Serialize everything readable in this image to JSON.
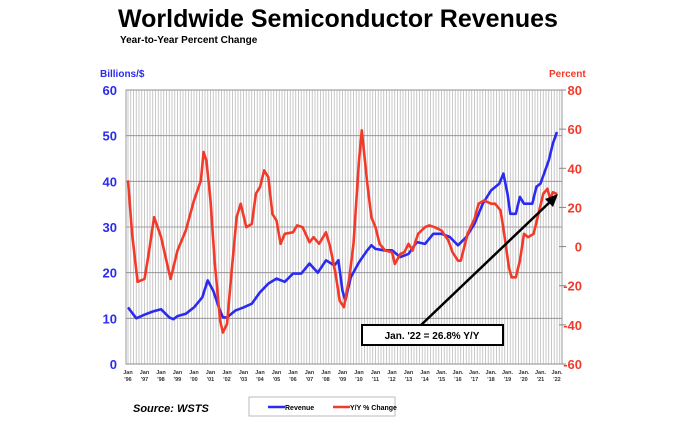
{
  "chart_data": {
    "type": "line",
    "title": "Worldwide Semiconductor Revenues",
    "subtitle": "Year-to-Year Percent Change",
    "ylabel_left": "Billions/$",
    "ylabel_right": "Percent",
    "ylim_left": [
      0,
      60
    ],
    "ylim_right": [
      -60,
      80
    ],
    "yticks_left": [
      "0",
      "10",
      "20",
      "30",
      "40",
      "50",
      "60"
    ],
    "yticks_right": [
      "-60",
      "-40",
      "-20",
      "0",
      "20",
      "40",
      "60",
      "80"
    ],
    "xlim": [
      "1996-01",
      "2022-01"
    ],
    "xticks": [
      [
        "Jan",
        "'96"
      ],
      [
        "Jan",
        "'97"
      ],
      [
        "Jan",
        "'98"
      ],
      [
        "Jan",
        "'99"
      ],
      [
        "Jan",
        "'00"
      ],
      [
        "Jan",
        "'01"
      ],
      [
        "Jan",
        "'02"
      ],
      [
        "Jan",
        "'03"
      ],
      [
        "Jan",
        "'04"
      ],
      [
        "Jan",
        "'05"
      ],
      [
        "Jan",
        "'06"
      ],
      [
        "Jan",
        "'07"
      ],
      [
        "Jan",
        "'08"
      ],
      [
        "Jan",
        "'09"
      ],
      [
        "Jan",
        "'10"
      ],
      [
        "Jan",
        "'11"
      ],
      [
        "Jan",
        "'12"
      ],
      [
        "Jan",
        "'13"
      ],
      [
        "Jan",
        "'14"
      ],
      [
        "Jan.",
        "'15"
      ],
      [
        "Jan.",
        "'16"
      ],
      [
        "Jan.",
        "'17"
      ],
      [
        "Jan.",
        "'18"
      ],
      [
        "Jan.",
        "'19"
      ],
      [
        "Jan.",
        "'20"
      ],
      [
        "Jan.",
        "'21"
      ],
      [
        "Jan.",
        "'22"
      ]
    ],
    "grid": true,
    "legend_position": "bottom",
    "source": "Source: WSTS",
    "annotation": "Jan. '22 = 26.8% Y/Y",
    "series": [
      {
        "name": "Revenue",
        "axis": "left",
        "color": "#2b2bf0",
        "points": [
          [
            "1996-01",
            12.4
          ],
          [
            "1996-07",
            10
          ],
          [
            "1997-01",
            10.8
          ],
          [
            "1997-07",
            11.5
          ],
          [
            "1998-01",
            12
          ],
          [
            "1998-07",
            10.2
          ],
          [
            "1998-10",
            9.8
          ],
          [
            "1999-01",
            10.5
          ],
          [
            "1999-07",
            11
          ],
          [
            "2000-01",
            12.4
          ],
          [
            "2000-07",
            14.6
          ],
          [
            "2000-11",
            18.3
          ],
          [
            "2001-03",
            16
          ],
          [
            "2001-07",
            12.4
          ],
          [
            "2001-10",
            10.2
          ],
          [
            "2002-01",
            10.2
          ],
          [
            "2002-07",
            11.7
          ],
          [
            "2003-01",
            12.4
          ],
          [
            "2003-07",
            13.2
          ],
          [
            "2004-01",
            15.7
          ],
          [
            "2004-07",
            17.6
          ],
          [
            "2005-01",
            18.7
          ],
          [
            "2005-07",
            18
          ],
          [
            "2006-01",
            19.8
          ],
          [
            "2006-07",
            19.8
          ],
          [
            "2007-01",
            22
          ],
          [
            "2007-07",
            20
          ],
          [
            "2008-01",
            22.7
          ],
          [
            "2008-07",
            21.6
          ],
          [
            "2008-10",
            22.7
          ],
          [
            "2009-01",
            16
          ],
          [
            "2009-03",
            13.9
          ],
          [
            "2009-07",
            19
          ],
          [
            "2010-01",
            22.3
          ],
          [
            "2010-07",
            24.9
          ],
          [
            "2010-10",
            26
          ],
          [
            "2011-01",
            25.2
          ],
          [
            "2011-07",
            24.9
          ],
          [
            "2012-01",
            24.9
          ],
          [
            "2012-07",
            23.4
          ],
          [
            "2013-01",
            24.1
          ],
          [
            "2013-07",
            26.7
          ],
          [
            "2014-01",
            26.3
          ],
          [
            "2014-07",
            28.5
          ],
          [
            "2015-01",
            28.5
          ],
          [
            "2015-07",
            27.8
          ],
          [
            "2016-01",
            26
          ],
          [
            "2016-07",
            27.8
          ],
          [
            "2017-01",
            30.7
          ],
          [
            "2017-07",
            35.1
          ],
          [
            "2018-01",
            38
          ],
          [
            "2018-07",
            39.5
          ],
          [
            "2018-10",
            41.7
          ],
          [
            "2019-01",
            37.3
          ],
          [
            "2019-03",
            32.9
          ],
          [
            "2019-07",
            32.9
          ],
          [
            "2019-10",
            36.6
          ],
          [
            "2020-01",
            35.1
          ],
          [
            "2020-07",
            35.1
          ],
          [
            "2020-10",
            38.8
          ],
          [
            "2021-01",
            39.5
          ],
          [
            "2021-07",
            44.6
          ],
          [
            "2021-10",
            48.3
          ],
          [
            "2022-01",
            50.8
          ]
        ]
      },
      {
        "name": "Y/Y % Change",
        "axis": "right",
        "color": "#f23a2a",
        "points": [
          [
            "1996-01",
            33.8
          ],
          [
            "1996-04",
            6.5
          ],
          [
            "1996-08",
            -18
          ],
          [
            "1997-01",
            -16.5
          ],
          [
            "1997-04",
            -4
          ],
          [
            "1997-08",
            15
          ],
          [
            "1998-01",
            5
          ],
          [
            "1998-06",
            -10.6
          ],
          [
            "1998-08",
            -16.5
          ],
          [
            "1999-01",
            -2
          ],
          [
            "1999-07",
            8.2
          ],
          [
            "2000-01",
            23.6
          ],
          [
            "2000-06",
            33.8
          ],
          [
            "2000-08",
            48.3
          ],
          [
            "2000-10",
            44
          ],
          [
            "2001-01",
            23.6
          ],
          [
            "2001-04",
            -7.2
          ],
          [
            "2001-08",
            -37.9
          ],
          [
            "2001-10",
            -43.9
          ],
          [
            "2002-01",
            -39.6
          ],
          [
            "2002-04",
            -15.7
          ],
          [
            "2002-08",
            15
          ],
          [
            "2002-11",
            21.9
          ],
          [
            "2003-03",
            9.9
          ],
          [
            "2003-07",
            11.6
          ],
          [
            "2003-10",
            27
          ],
          [
            "2004-01",
            30.4
          ],
          [
            "2004-04",
            38.9
          ],
          [
            "2004-07",
            35.5
          ],
          [
            "2004-10",
            16.7
          ],
          [
            "2005-01",
            13.3
          ],
          [
            "2005-04",
            1.4
          ],
          [
            "2005-07",
            6.5
          ],
          [
            "2006-01",
            7.3
          ],
          [
            "2006-04",
            10.8
          ],
          [
            "2006-08",
            9.9
          ],
          [
            "2007-01",
            2.2
          ],
          [
            "2007-04",
            4.8
          ],
          [
            "2007-08",
            1.4
          ],
          [
            "2008-01",
            7.3
          ],
          [
            "2008-04",
            0
          ],
          [
            "2008-08",
            -14
          ],
          [
            "2008-11",
            -27.7
          ],
          [
            "2009-02",
            -31
          ],
          [
            "2009-06",
            -15.7
          ],
          [
            "2009-09",
            1.4
          ],
          [
            "2010-01",
            44
          ],
          [
            "2010-03",
            59.4
          ],
          [
            "2010-07",
            32.1
          ],
          [
            "2010-10",
            15
          ],
          [
            "2011-01",
            9.9
          ],
          [
            "2011-04",
            1.4
          ],
          [
            "2011-08",
            -2
          ],
          [
            "2012-01",
            -2.9
          ],
          [
            "2012-03",
            -8.9
          ],
          [
            "2012-07",
            -3.8
          ],
          [
            "2012-10",
            -2.9
          ],
          [
            "2013-01",
            1.4
          ],
          [
            "2013-04",
            -2
          ],
          [
            "2013-08",
            6.5
          ],
          [
            "2014-01",
            9.9
          ],
          [
            "2014-04",
            10.8
          ],
          [
            "2014-08",
            9.9
          ],
          [
            "2015-01",
            8.2
          ],
          [
            "2015-06",
            3.1
          ],
          [
            "2015-09",
            -2.9
          ],
          [
            "2016-01",
            -7.2
          ],
          [
            "2016-03",
            -7.2
          ],
          [
            "2016-08",
            6.5
          ],
          [
            "2017-01",
            14.2
          ],
          [
            "2017-04",
            21.9
          ],
          [
            "2017-08",
            23.6
          ],
          [
            "2018-01",
            21.9
          ],
          [
            "2018-04",
            21.9
          ],
          [
            "2018-08",
            18.4
          ],
          [
            "2018-11",
            4.8
          ],
          [
            "2019-02",
            -10.6
          ],
          [
            "2019-04",
            -15.7
          ],
          [
            "2019-07",
            -15.7
          ],
          [
            "2019-10",
            -7.2
          ],
          [
            "2020-01",
            6.5
          ],
          [
            "2020-04",
            4.8
          ],
          [
            "2020-08",
            6.5
          ],
          [
            "2020-11",
            15
          ],
          [
            "2021-03",
            27
          ],
          [
            "2021-06",
            29.5
          ],
          [
            "2021-08",
            24.4
          ],
          [
            "2021-10",
            27.8
          ],
          [
            "2022-01",
            26.8
          ]
        ]
      }
    ]
  }
}
